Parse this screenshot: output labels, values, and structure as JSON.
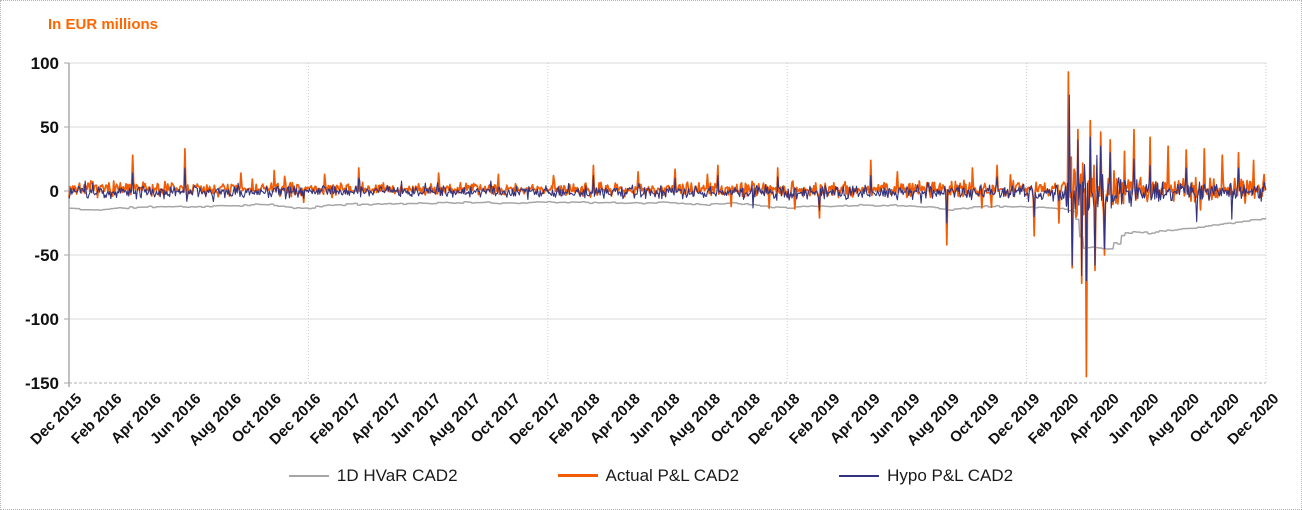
{
  "page": {
    "background": "#ffffff",
    "border_color": "#b5b5b5"
  },
  "chart_data": {
    "type": "line",
    "title": "In EUR millions",
    "title_color": "#ff6600",
    "x_axis": {
      "months_total": 60,
      "tick_every_months": 2,
      "tick_labels": [
        "Dec 2015",
        "Feb 2016",
        "Apr 2016",
        "Jun 2016",
        "Aug 2016",
        "Oct 2016",
        "Dec 2016",
        "Feb 2017",
        "Apr 2017",
        "Jun 2017",
        "Aug 2017",
        "Oct 2017",
        "Dec 2017",
        "Feb 2018",
        "Apr 2018",
        "Jun 2018",
        "Aug 2018",
        "Oct 2018",
        "Dec 2018",
        "Feb 2019",
        "Apr 2019",
        "Jun 2019",
        "Aug 2019",
        "Oct 2019",
        "Dec 2019",
        "Feb 2020",
        "Apr 2020",
        "Jun 2020",
        "Aug 2020",
        "Oct 2020",
        "Dec 2020"
      ],
      "year_gridline_months": [
        12,
        24,
        36,
        48,
        60
      ]
    },
    "y_axis": {
      "min": -150,
      "max": 100,
      "step": 50,
      "ticks": [
        100,
        50,
        0,
        -50,
        -100,
        -150
      ]
    },
    "grid": {
      "horizontal_color": "#d9d9d9",
      "vertical_color": "#cccccc",
      "axis_color": "#a6a6a6"
    },
    "legend_position": "bottom",
    "series": [
      {
        "name": "1D HVaR CAD2",
        "color": "#a6a6a6",
        "stroke_width": 1.5,
        "render": "step",
        "seed": 11,
        "step_days": 4,
        "noise": 0.8,
        "keyframes": [
          [
            0,
            -13.5
          ],
          [
            1,
            -15
          ],
          [
            2,
            -14
          ],
          [
            3,
            -13
          ],
          [
            4,
            -12.5
          ],
          [
            5,
            -12
          ],
          [
            6,
            -12.5
          ],
          [
            8,
            -11.5
          ],
          [
            10,
            -10.5
          ],
          [
            11,
            -13
          ],
          [
            12,
            -13.5
          ],
          [
            13,
            -11
          ],
          [
            14,
            -10.5
          ],
          [
            16,
            -10
          ],
          [
            18,
            -9.5
          ],
          [
            20,
            -9
          ],
          [
            22,
            -9.5
          ],
          [
            24,
            -8.5
          ],
          [
            26,
            -9
          ],
          [
            28,
            -9.5
          ],
          [
            30,
            -9
          ],
          [
            31,
            -10
          ],
          [
            32,
            -10.5
          ],
          [
            33,
            -9.5
          ],
          [
            34,
            -10
          ],
          [
            35,
            -12
          ],
          [
            36,
            -13
          ],
          [
            37,
            -12
          ],
          [
            38,
            -12
          ],
          [
            40,
            -11
          ],
          [
            42,
            -11.5
          ],
          [
            43,
            -12
          ],
          [
            44,
            -15
          ],
          [
            45,
            -13
          ],
          [
            46,
            -12
          ],
          [
            48,
            -12.5
          ],
          [
            49,
            -13
          ],
          [
            50,
            -14
          ],
          [
            50.4,
            -17
          ],
          [
            50.8,
            -44
          ],
          [
            51.5,
            -44.5
          ],
          [
            52.2,
            -45
          ],
          [
            52.4,
            -40
          ],
          [
            52.6,
            -42
          ],
          [
            52.8,
            -33
          ],
          [
            53.6,
            -32
          ],
          [
            54.2,
            -33
          ],
          [
            54.8,
            -31
          ],
          [
            55.5,
            -30
          ],
          [
            56.2,
            -29
          ],
          [
            56.8,
            -28
          ],
          [
            57.5,
            -26.5
          ],
          [
            58.2,
            -25
          ],
          [
            58.8,
            -24
          ],
          [
            59.4,
            -22.5
          ],
          [
            60,
            -21
          ]
        ]
      },
      {
        "name": "Actual P&L CAD2",
        "color": "#f25c05",
        "stroke_width": 1.7,
        "render": "noisy",
        "seed": 7,
        "baseline": [
          [
            0,
            1.8
          ],
          [
            12,
            1.5
          ],
          [
            24,
            1.5
          ],
          [
            36,
            1.2
          ],
          [
            48,
            1.5
          ],
          [
            50,
            2
          ],
          [
            52,
            1
          ],
          [
            60,
            1.5
          ]
        ],
        "amplitude": [
          [
            0,
            5.5
          ],
          [
            4,
            5
          ],
          [
            8,
            4.5
          ],
          [
            12,
            4.5
          ],
          [
            16,
            4
          ],
          [
            20,
            4
          ],
          [
            24,
            4.5
          ],
          [
            28,
            4.5
          ],
          [
            32,
            5
          ],
          [
            36,
            5.5
          ],
          [
            40,
            5
          ],
          [
            44,
            5.5
          ],
          [
            48,
            5.5
          ],
          [
            49.8,
            7
          ],
          [
            50.3,
            22
          ],
          [
            51.6,
            20
          ],
          [
            52.4,
            13
          ],
          [
            53.5,
            10
          ],
          [
            55,
            9
          ],
          [
            57,
            8
          ],
          [
            58.5,
            7.5
          ],
          [
            60,
            7
          ]
        ],
        "spikes": [
          [
            3.2,
            28
          ],
          [
            5.8,
            33
          ],
          [
            8.6,
            14
          ],
          [
            10.3,
            16
          ],
          [
            12.8,
            13
          ],
          [
            14.5,
            18
          ],
          [
            18.5,
            14
          ],
          [
            21.5,
            13
          ],
          [
            24.3,
            12
          ],
          [
            26.3,
            20
          ],
          [
            28.5,
            15
          ],
          [
            30.4,
            17
          ],
          [
            32.5,
            20
          ],
          [
            33.2,
            -12
          ],
          [
            35.5,
            18
          ],
          [
            36.4,
            -14
          ],
          [
            37.6,
            -21
          ],
          [
            40.2,
            24
          ],
          [
            41.5,
            15
          ],
          [
            44.0,
            -42
          ],
          [
            45.3,
            18
          ],
          [
            46.5,
            20
          ],
          [
            48.4,
            -35
          ],
          [
            49.6,
            -25
          ],
          [
            50.1,
            93
          ],
          [
            50.3,
            -60
          ],
          [
            50.55,
            48
          ],
          [
            50.75,
            -72
          ],
          [
            51.0,
            -145
          ],
          [
            51.2,
            55
          ],
          [
            51.45,
            -62
          ],
          [
            51.7,
            46
          ],
          [
            51.9,
            -50
          ],
          [
            52.2,
            40
          ],
          [
            52.9,
            31
          ],
          [
            53.4,
            48
          ],
          [
            54.2,
            42
          ],
          [
            55.1,
            35
          ],
          [
            56.0,
            32
          ],
          [
            56.9,
            33
          ],
          [
            57.8,
            28
          ],
          [
            58.6,
            30
          ],
          [
            59.4,
            24
          ]
        ]
      },
      {
        "name": "Hypo P&L CAD2",
        "color": "#33337f",
        "stroke_width": 1.1,
        "render": "noisy",
        "seed": 23,
        "baseline": [
          [
            0,
            -0.8
          ],
          [
            12,
            -0.5
          ],
          [
            24,
            -0.5
          ],
          [
            36,
            -1
          ],
          [
            48,
            -0.8
          ],
          [
            52,
            -1.5
          ],
          [
            60,
            -0.5
          ]
        ],
        "amplitude": [
          [
            0,
            4.5
          ],
          [
            8,
            4
          ],
          [
            12,
            3.8
          ],
          [
            20,
            3.5
          ],
          [
            24,
            4
          ],
          [
            32,
            4.2
          ],
          [
            36,
            4.8
          ],
          [
            44,
            4.5
          ],
          [
            48,
            4.8
          ],
          [
            49.8,
            6
          ],
          [
            50.3,
            18
          ],
          [
            51.6,
            16
          ],
          [
            52.4,
            10
          ],
          [
            53.5,
            8
          ],
          [
            55,
            7
          ],
          [
            57,
            6.5
          ],
          [
            60,
            6
          ]
        ],
        "spikes": [
          [
            3.2,
            14
          ],
          [
            5.8,
            18
          ],
          [
            14.5,
            10
          ],
          [
            26.3,
            12
          ],
          [
            30.4,
            10
          ],
          [
            32.5,
            12
          ],
          [
            35.5,
            11
          ],
          [
            37.6,
            -15
          ],
          [
            40.2,
            12
          ],
          [
            44.0,
            -25
          ],
          [
            46.5,
            11
          ],
          [
            48.4,
            -20
          ],
          [
            50.15,
            75
          ],
          [
            50.3,
            -58
          ],
          [
            50.55,
            40
          ],
          [
            50.75,
            -66
          ],
          [
            51.0,
            -70
          ],
          [
            51.2,
            42
          ],
          [
            51.45,
            -58
          ],
          [
            51.7,
            35
          ],
          [
            51.9,
            -45
          ],
          [
            52.2,
            30
          ],
          [
            53.4,
            25
          ],
          [
            54.2,
            20
          ],
          [
            56.0,
            18
          ],
          [
            56.5,
            -24
          ],
          [
            58.3,
            -22
          ],
          [
            58.6,
            18
          ]
        ]
      }
    ]
  }
}
